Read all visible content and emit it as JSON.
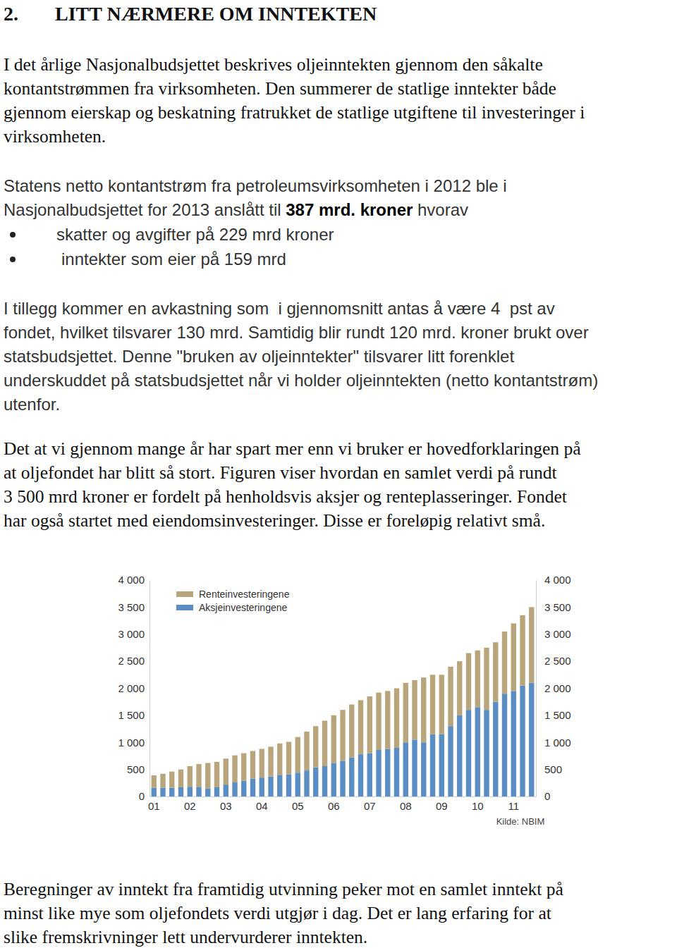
{
  "heading": {
    "number": "2.",
    "title": "LITT NÆRMERE OM INNTEKTEN"
  },
  "paragraphs": [
    {
      "lines": [
        "I det årlige Nasjonalbudsjettet beskrives oljeinntekten gjennom den såkalte",
        "kontantstrømmen fra virksomheten. Den summerer de statlige inntekter både",
        "gjennom eierskap og beskatning fratrukket de statlige utgiftene til investeringer i",
        "virksomheten."
      ]
    },
    {
      "lines": [
        "Statens netto kontantstrøm fra petroleumsvirksomheten i 2012 ble i",
        {
          "parts": [
            {
              "text": "Nasjonalbudsjettet for 2013 anslått til ",
              "bold": false
            },
            {
              "text": "387 mrd. kroner",
              "bold": true
            },
            {
              "text": " hvorav",
              "bold": false
            }
          ]
        }
      ]
    },
    {
      "lines": [
        "I tillegg kommer en avkastning som  i gjennomsnitt antas å være 4  pst av",
        "fondet, hvilket tilsvarer 130 mrd. Samtidig blir rundt 120 mrd. kroner brukt over",
        "statsbudsjettet. Denne \"bruken av oljeinntekter\" tilsvarer litt forenklet",
        "underskuddet på statsbudsjettet når vi holder oljeinntekten (netto kontantstrøm)",
        "utenfor."
      ]
    },
    {
      "lines": [
        "Det at vi gjennom mange år har spart mer enn vi bruker er hovedforklaringen på",
        "at oljefondet har blitt så stort. Figuren viser hvordan en samlet verdi på rundt",
        "3 500 mrd kroner er fordelt på henholdsvis aksjer og renteplasseringer. Fondet",
        "har også startet med eiendomsinvesteringer. Disse er foreløpig relativt små."
      ]
    },
    {
      "lines": [
        "Beregninger av inntekt fra framtidig utvinning peker mot en samlet inntekt på",
        "minst like mye som oljefondets verdi utgjør i dag. Det er lang erfaring for at",
        "slike fremskrivninger lett undervurderer inntekten."
      ]
    }
  ],
  "bullets": [
    "skatter og avgifter på 229 mrd kroner",
    "inntekter som eier på 159 mrd"
  ],
  "chart_data": {
    "type": "bar",
    "stacked": true,
    "grid": false,
    "legend": "upper left",
    "source": "Kilde: NBIM",
    "categories": [
      "01",
      null,
      null,
      null,
      "02",
      null,
      null,
      null,
      "03",
      null,
      null,
      null,
      "04",
      null,
      null,
      null,
      "05",
      null,
      null,
      null,
      "06",
      null,
      null,
      null,
      "07",
      null,
      null,
      null,
      "08",
      null,
      null,
      null,
      "09",
      null,
      null,
      null,
      "10",
      null,
      null,
      null,
      "11",
      null,
      null
    ],
    "series": [
      {
        "name": "Aksjeinvesteringene",
        "color": "#5a8dc4",
        "values": [
          160,
          160,
          160,
          170,
          180,
          170,
          150,
          170,
          220,
          260,
          290,
          330,
          350,
          370,
          400,
          410,
          440,
          480,
          540,
          560,
          620,
          660,
          720,
          780,
          800,
          860,
          880,
          900,
          1000,
          1050,
          1000,
          1150,
          1150,
          1300,
          1500,
          1600,
          1650,
          1600,
          1750,
          1900,
          1950,
          2050,
          2100
        ]
      },
      {
        "name": "Renteinvesteringene",
        "color": "#b9a57b",
        "values": [
          230,
          260,
          300,
          330,
          380,
          430,
          470,
          470,
          480,
          500,
          510,
          510,
          530,
          550,
          580,
          600,
          660,
          720,
          760,
          840,
          880,
          940,
          980,
          1000,
          1050,
          1060,
          1070,
          1100,
          1100,
          1100,
          1200,
          1100,
          1100,
          1100,
          1000,
          1050,
          1050,
          1150,
          1100,
          1150,
          1250,
          1300,
          1400
        ]
      }
    ],
    "ylim": [
      0,
      4000
    ],
    "yticks": [
      0,
      500,
      {
        "value": 1000,
        "label": "1 000"
      },
      {
        "value": 1500,
        "label": "1 500"
      },
      {
        "value": 2000,
        "label": "2 000"
      },
      {
        "value": 2500,
        "label": "2 500"
      },
      {
        "value": 3000,
        "label": "3 000"
      },
      {
        "value": 3500,
        "label": "3 500"
      },
      {
        "value": 4000,
        "label": "4 000"
      }
    ]
  }
}
